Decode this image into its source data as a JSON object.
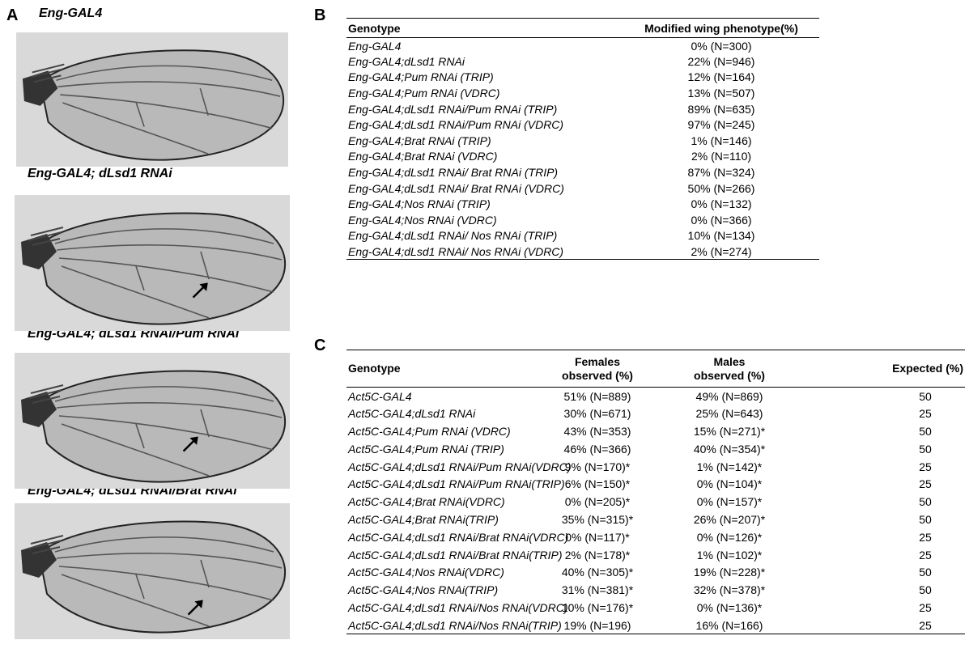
{
  "panel_labels": [
    "A",
    "B",
    "C"
  ],
  "panel_a": {
    "captions": [
      "Eng-GAL4",
      "Eng-GAL4; dLsd1 RNAi",
      "Eng-GAL4; dLsd1 RNAi/Pum RNAi",
      "Eng-GAL4; dLsd1 RNAi/Brat RNAi"
    ]
  },
  "panel_b": {
    "header": [
      "Genotype",
      "Modified wing phenotype(%)"
    ],
    "rows": [
      [
        "Eng-GAL4",
        "0% (N=300)"
      ],
      [
        "Eng-GAL4;dLsd1 RNAi",
        "22% (N=946)"
      ],
      [
        "Eng-GAL4;Pum RNAi (TRIP)",
        "12% (N=164)"
      ],
      [
        "Eng-GAL4;Pum RNAi (VDRC)",
        "13% (N=507)"
      ],
      [
        "Eng-GAL4;dLsd1 RNAi/Pum RNAi (TRIP)",
        "89% (N=635)"
      ],
      [
        "Eng-GAL4;dLsd1 RNAi/Pum RNAi (VDRC)",
        "97% (N=245)"
      ],
      [
        "Eng-GAL4;Brat RNAi (TRIP)",
        "1% (N=146)"
      ],
      [
        "Eng-GAL4;Brat RNAi (VDRC)",
        "2% (N=110)"
      ],
      [
        "Eng-GAL4;dLsd1 RNAi/ Brat RNAi (TRIP)",
        "87% (N=324)"
      ],
      [
        "Eng-GAL4;dLsd1 RNAi/ Brat RNAi (VDRC)",
        "50% (N=266)"
      ],
      [
        "Eng-GAL4;Nos RNAi (TRIP)",
        "0% (N=132)"
      ],
      [
        "Eng-GAL4;Nos RNAi (VDRC)",
        "0% (N=366)"
      ],
      [
        "Eng-GAL4;dLsd1 RNAi/ Nos RNAi (TRIP)",
        "10% (N=134)"
      ],
      [
        "Eng-GAL4;dLsd1 RNAi/ Nos RNAi (VDRC)",
        "2% (N=274)"
      ]
    ]
  },
  "panel_c": {
    "header": [
      "Genotype",
      "Females observed (%)",
      "Males observed (%)",
      "Expected (%)"
    ],
    "rows": [
      [
        "Act5C-GAL4",
        "51% (N=889)",
        "49% (N=869)",
        "50"
      ],
      [
        "Act5C-GAL4;dLsd1 RNAi",
        "30% (N=671)",
        "25% (N=643)",
        "25"
      ],
      [
        "Act5C-GAL4;Pum RNAi (VDRC)",
        "43% (N=353)",
        "15% (N=271)*",
        "50"
      ],
      [
        "Act5C-GAL4;Pum RNAi (TRIP)",
        "46% (N=366)",
        "40% (N=354)*",
        "50"
      ],
      [
        "Act5C-GAL4;dLsd1 RNAi/Pum RNAi(VDRC)",
        "9% (N=170)*",
        "1% (N=142)*",
        "25"
      ],
      [
        "Act5C-GAL4;dLsd1 RNAi/Pum RNAi(TRIP)",
        "6% (N=150)*",
        "0% (N=104)*",
        "25"
      ],
      [
        "Act5C-GAL4;Brat RNAi(VDRC)",
        "0% (N=205)*",
        "0% (N=157)*",
        "50"
      ],
      [
        "Act5C-GAL4;Brat RNAi(TRIP)",
        "35% (N=315)*",
        "26% (N=207)*",
        "50"
      ],
      [
        "Act5C-GAL4;dLsd1 RNAi/Brat RNAi(VDRC)",
        "0% (N=117)*",
        "0% (N=126)*",
        "25"
      ],
      [
        "Act5C-GAL4;dLsd1 RNAi/Brat RNAi(TRIP)",
        "2% (N=178)*",
        "1% (N=102)*",
        "25"
      ],
      [
        "Act5C-GAL4;Nos RNAi(VDRC)",
        "40% (N=305)*",
        "19% (N=228)*",
        "50"
      ],
      [
        "Act5C-GAL4;Nos RNAi(TRIP)",
        "31% (N=381)*",
        "32% (N=378)*",
        "50"
      ],
      [
        "Act5C-GAL4;dLsd1 RNAi/Nos RNAi(VDRC)",
        "10% (N=176)*",
        "0% (N=136)*",
        "25"
      ],
      [
        "Act5C-GAL4;dLsd1 RNAi/Nos RNAi(TRIP)",
        "19% (N=196)",
        "16% (N=166)",
        "25"
      ]
    ]
  }
}
